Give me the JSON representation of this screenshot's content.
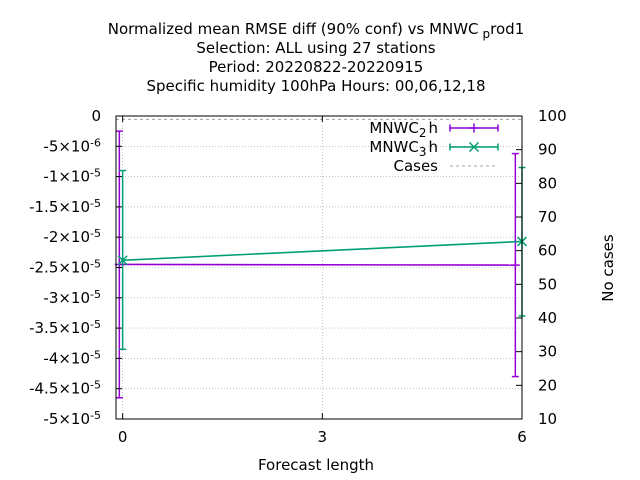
{
  "chart_data": {
    "type": "line",
    "title_lines": [
      "Normalized mean RMSE diff (90% conf) vs MNWC",
      "Selection: ALL using    27 stations",
      "Period: 20220822-20220915",
      "Specific humidity 100hPa   Hours:  00,06,12,18"
    ],
    "title_tail": {
      "sub": "p",
      "rest": "rod1"
    },
    "xlabel": "Forecast length",
    "y2label": "No cases",
    "xlim": [
      -0.1,
      6
    ],
    "ylim": [
      -5e-05,
      0
    ],
    "y2lim": [
      10,
      100
    ],
    "x_ticks": [
      0,
      3,
      6
    ],
    "x_tick_labels": [
      "0",
      "3",
      "6"
    ],
    "y_ticks": [
      0,
      -5e-06,
      -1e-05,
      -1.5e-05,
      -2e-05,
      -2.5e-05,
      -3e-05,
      -3.5e-05,
      -4e-05,
      -4.5e-05,
      -5e-05
    ],
    "y_tick_labels": [
      {
        "pre": "0",
        "exp": ""
      },
      {
        "pre": "-5×10",
        "exp": "-6"
      },
      {
        "pre": "-1×10",
        "exp": "-5"
      },
      {
        "pre": "-1.5×10",
        "exp": "-5"
      },
      {
        "pre": "-2×10",
        "exp": "-5"
      },
      {
        "pre": "-2.5×10",
        "exp": "-5"
      },
      {
        "pre": "-3×10",
        "exp": "-5"
      },
      {
        "pre": "-3.5×10",
        "exp": "-5"
      },
      {
        "pre": "-4×10",
        "exp": "-5"
      },
      {
        "pre": "-4.5×10",
        "exp": "-5"
      },
      {
        "pre": "-5×10",
        "exp": "-5"
      }
    ],
    "y2_ticks": [
      10,
      20,
      30,
      40,
      50,
      60,
      70,
      80,
      90,
      100
    ],
    "y2_tick_labels": [
      "10",
      "20",
      "30",
      "40",
      "50",
      "60",
      "70",
      "80",
      "90",
      "100"
    ],
    "grid": true,
    "legend_position": "top-right",
    "series": [
      {
        "name": "MNWC",
        "name_sub": "2",
        "name_tail": "h",
        "color": "#9400d3",
        "marker": "plus",
        "axis": "y",
        "points": [
          {
            "x": -0.05,
            "y": -2.45e-05,
            "err_low": -4.65e-05,
            "err_high": -2.5e-06
          },
          {
            "x": 5.9,
            "y": -2.46e-05,
            "err_low": -4.3e-05,
            "err_high": -6.2e-06
          }
        ]
      },
      {
        "name": "MNWC",
        "name_sub": "3",
        "name_tail": "h",
        "color": "#009e73",
        "marker": "cross",
        "axis": "y",
        "points": [
          {
            "x": 0,
            "y": -2.38e-05,
            "err_low": -3.85e-05,
            "err_high": -9e-06
          },
          {
            "x": 6,
            "y": -2.07e-05,
            "err_low": -3.3e-05,
            "err_high": -8.5e-06
          }
        ]
      },
      {
        "name": "Cases",
        "color": "#a0a0a0",
        "style": "dashed",
        "axis": "y2",
        "points": [
          {
            "x": -0.1,
            "y": 99
          },
          {
            "x": 6,
            "y": 99
          }
        ]
      }
    ]
  }
}
